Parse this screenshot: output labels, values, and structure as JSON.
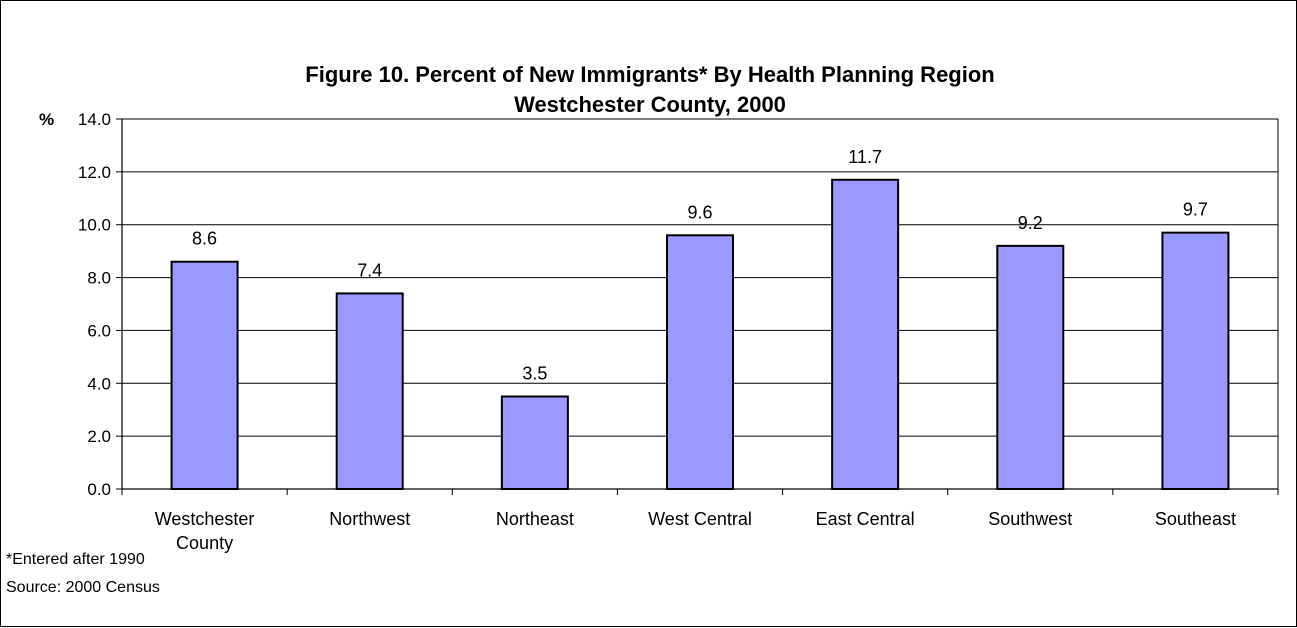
{
  "chart_data": {
    "type": "bar",
    "title": "Figure 10. Percent of New Immigrants* By Health Planning Region",
    "subtitle": "Westchester County, 2000",
    "ylabel": "%",
    "xlabel": "",
    "ylim": [
      0,
      14
    ],
    "y_ticks": [
      "0.0",
      "2.0",
      "4.0",
      "6.0",
      "8.0",
      "10.0",
      "12.0",
      "14.0"
    ],
    "categories": [
      [
        "Westchester",
        "County"
      ],
      [
        "Northwest"
      ],
      [
        "Northeast"
      ],
      [
        "West Central"
      ],
      [
        "East Central"
      ],
      [
        "Southwest"
      ],
      [
        "Southeast"
      ]
    ],
    "values": [
      8.6,
      7.4,
      3.5,
      9.6,
      11.7,
      9.2,
      9.7
    ],
    "data_labels": [
      "8.6",
      "7.4",
      "3.5",
      "9.6",
      "11.7",
      "9.2",
      "9.7"
    ],
    "bar_color": "#9999ff",
    "grid": true,
    "legend": "none"
  },
  "footnotes": {
    "note": "*Entered after 1990",
    "source": "Source: 2000 Census"
  }
}
